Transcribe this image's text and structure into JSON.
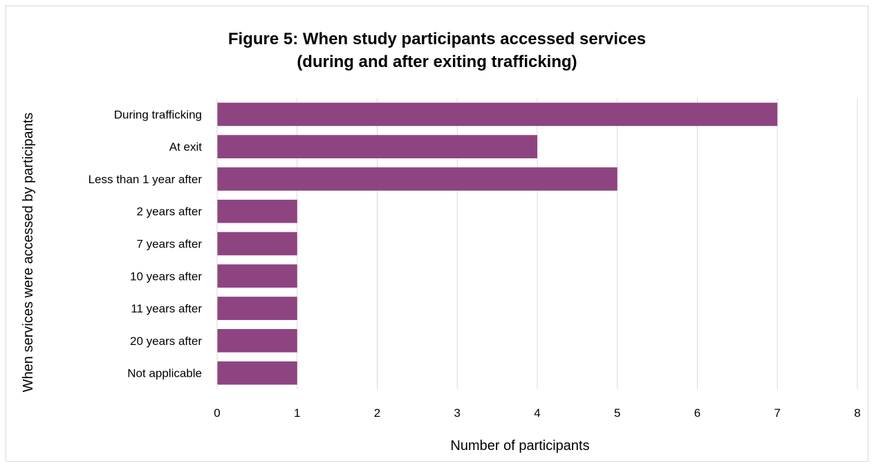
{
  "chart_data": {
    "type": "bar",
    "orientation": "horizontal",
    "title": "Figure 5: When study participants accessed services\n(during and after exiting trafficking)",
    "xlabel": "Number of participants",
    "ylabel": "When services were accessed by participants",
    "categories": [
      "During trafficking",
      "At exit",
      "Less than 1 year after",
      "2 years after",
      "7 years after",
      "10 years after",
      "11 years after",
      "20 years after",
      "Not applicable"
    ],
    "values": [
      7,
      4,
      5,
      1,
      1,
      1,
      1,
      1,
      1
    ],
    "xlim": [
      0,
      8
    ],
    "x_ticks": [
      0,
      1,
      2,
      3,
      4,
      5,
      6,
      7,
      8
    ],
    "grid": true,
    "legend": "none",
    "bar_color": "#8e4480",
    "grid_color": "#d9d9d9"
  }
}
